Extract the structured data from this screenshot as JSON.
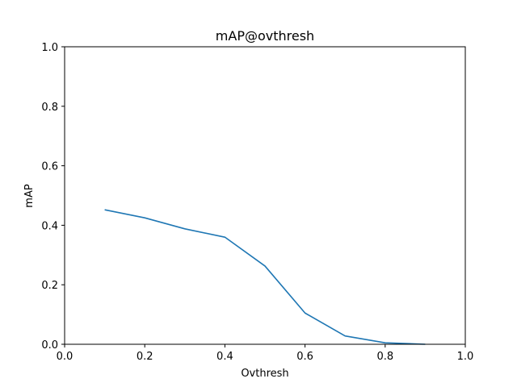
{
  "chart_data": {
    "type": "line",
    "title": "mAP@ovthresh",
    "xlabel": "Ovthresh",
    "ylabel": "mAP",
    "xlim": [
      0.0,
      1.0
    ],
    "ylim": [
      0.0,
      1.0
    ],
    "xticks": [
      "0.0",
      "0.2",
      "0.4",
      "0.6",
      "0.8",
      "1.0"
    ],
    "yticks": [
      "0.0",
      "0.2",
      "0.4",
      "0.6",
      "0.8",
      "1.0"
    ],
    "grid": false,
    "series": [
      {
        "color": "#1f77b4",
        "x": [
          0.1,
          0.2,
          0.3,
          0.4,
          0.5,
          0.6,
          0.7,
          0.8,
          0.9
        ],
        "y": [
          0.452,
          0.425,
          0.388,
          0.36,
          0.263,
          0.105,
          0.028,
          0.005,
          0.0
        ]
      }
    ]
  }
}
